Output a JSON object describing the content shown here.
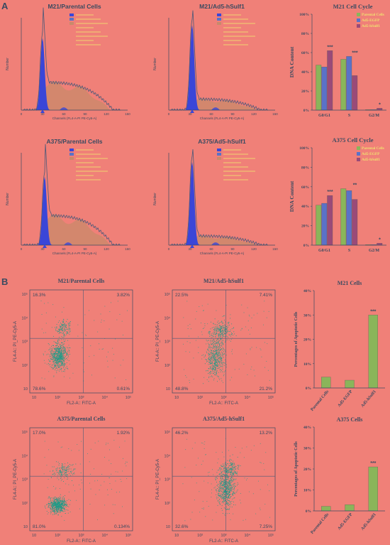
{
  "figure": {
    "panel_a_label": "A",
    "panel_b_label": "B",
    "colors": {
      "background": "#f08078",
      "axis": "#3a4a60",
      "histogram_fill": "#3a46d8",
      "histogram_outline": "#4a5878",
      "s_phase_fill": "#c98a6a",
      "parental": "#8ab55a",
      "egfp": "#5a72c8",
      "hsulf1": "#9a4a78",
      "dots": "#1f9c88",
      "annotation": "#f0e070"
    }
  },
  "histograms": [
    {
      "title": "M21/Parental Cells",
      "xlabel": "Channels (FL4-A-PI PE-Cy5-A)",
      "ylabel": "Number",
      "xticks": [
        "0",
        "30",
        "60",
        "90",
        "120",
        "150"
      ],
      "peak_channel": 30,
      "peak_height": 0.78,
      "s_level": 0.3
    },
    {
      "title": "M21/Ad5-hSulf1",
      "xlabel": "Channels (FL4-A-PI PE-Cy5-A)",
      "ylabel": "Number",
      "xticks": [
        "0",
        "30",
        "60",
        "90",
        "120",
        "150"
      ],
      "peak_channel": 33,
      "peak_height": 0.92,
      "s_level": 0.12
    },
    {
      "title": "A375/Parental Cells",
      "xlabel": "Channels (FL4-A-PI PE-Cy5-A)",
      "ylabel": "Number",
      "xticks": [
        "0",
        "30",
        "60",
        "90",
        "120",
        "150"
      ],
      "peak_channel": 33,
      "peak_height": 0.74,
      "s_level": 0.32
    },
    {
      "title": "A375/Ad5-hSulf1",
      "xlabel": "Channels (FL4-A-PI PE-Cy5-A)",
      "ylabel": "Number",
      "xticks": [
        "0",
        "30",
        "60",
        "90",
        "120",
        "150"
      ],
      "peak_channel": 33,
      "peak_height": 0.9,
      "s_level": 0.1
    }
  ],
  "dotplots": [
    {
      "title": "M21/Parental Cells",
      "xlabel": "FL2-A:: FITC-A",
      "ylabel": "FL4-A:: PI_PE-Cy5-A",
      "quadrants": {
        "ul": "16.3%",
        "ur": "3.82%",
        "ll": "78.6%",
        "lr": "0.61%"
      }
    },
    {
      "title": "M21/Ad5-hSulf1",
      "xlabel": "FL2-A:: FITC-A",
      "ylabel": "FL4-A:: PI_PE-Cy5-A",
      "quadrants": {
        "ul": "22.5%",
        "ur": "7.41%",
        "ll": "48.8%",
        "lr": "21.2%"
      }
    },
    {
      "title": "A375/Parental Cells",
      "xlabel": "FL2-A:: FITC-A",
      "ylabel": "FL4-A:: PI_PE-Cy5-A",
      "quadrants": {
        "ul": "17.0%",
        "ur": "1.92%",
        "ll": "81.0%",
        "lr": "0.134%"
      }
    },
    {
      "title": "A375/Ad5-hSulf1",
      "xlabel": "FL2-A:: FITC-A",
      "ylabel": "FL4-A:: PI_PE-Cy5-A",
      "quadrants": {
        "ul": "46.2%",
        "ur": "13.2%",
        "ll": "32.6%",
        "lr": "7.25%"
      }
    }
  ],
  "dot_axis_ticks": [
    "10",
    "10²",
    "10³",
    "10⁴",
    "10⁵"
  ],
  "chart_data": [
    {
      "type": "bar",
      "title": "M21 Cell Cycle",
      "ylabel": "DNA Content",
      "categories": [
        "G0/G1",
        "S",
        "G2/M"
      ],
      "series": [
        {
          "name": "Parental Cells",
          "values": [
            47,
            53,
            0.5
          ]
        },
        {
          "name": "Ad5-EGFP",
          "values": [
            45,
            56,
            0.5
          ]
        },
        {
          "name": "Ad5-hSulf1",
          "values": [
            62,
            36,
            2
          ]
        }
      ],
      "significance": [
        "***",
        "***",
        "*"
      ],
      "ylim": [
        0,
        100
      ],
      "yticks": [
        "0%",
        "20%",
        "40%",
        "60%",
        "80%",
        "100%"
      ],
      "legend": "top-right"
    },
    {
      "type": "bar",
      "title": "A375 Cell Cycle",
      "ylabel": "DNA Content",
      "categories": [
        "G0/G1",
        "S",
        "G2/M"
      ],
      "series": [
        {
          "name": "Parental Cells",
          "values": [
            41,
            58,
            0.5
          ]
        },
        {
          "name": "Ad5-EGFP",
          "values": [
            43,
            56,
            0.5
          ]
        },
        {
          "name": "Ad5-hSulf1",
          "values": [
            51,
            47,
            2
          ]
        }
      ],
      "significance": [
        "***",
        "**",
        "*"
      ],
      "ylim": [
        0,
        100
      ],
      "yticks": [
        "0%",
        "20%",
        "40%",
        "60%",
        "80%",
        "100%"
      ],
      "legend": "top-right"
    },
    {
      "type": "bar",
      "title": "M21 Cells",
      "ylabel": "Percentages of Apoptotic Cells",
      "categories": [
        "Parental Cells",
        "Ad5-EGFP",
        "Ad5-hSulf1"
      ],
      "values": [
        4.5,
        3.2,
        30
      ],
      "significance": [
        "",
        "",
        "***"
      ],
      "ylim": [
        0,
        40
      ],
      "yticks": [
        "0%",
        "10%",
        "20%",
        "30%",
        "40%"
      ]
    },
    {
      "type": "bar",
      "title": "A375 Cells",
      "ylabel": "Percentages of Apoptotic Cells",
      "categories": [
        "Parental Cells",
        "Ad5-EGFP",
        "Ad5-hSulf1"
      ],
      "values": [
        2.2,
        3.0,
        21
      ],
      "significance": [
        "",
        "",
        "***"
      ],
      "ylim": [
        0,
        40
      ],
      "yticks": [
        "0%",
        "10%",
        "20%",
        "30%",
        "40%"
      ]
    }
  ]
}
